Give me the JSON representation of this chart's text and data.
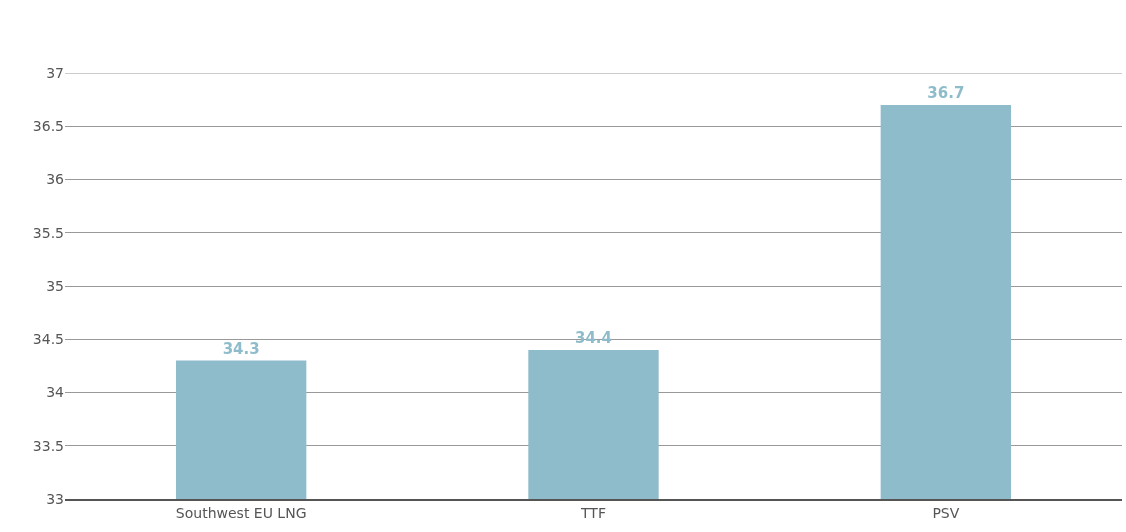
{
  "chart_data": {
    "type": "bar",
    "categories": [
      "Southwest EU LNG",
      "TTF",
      "PSV"
    ],
    "values": [
      34.3,
      34.4,
      36.7
    ],
    "color": "#8fbccb",
    "ylim": [
      33,
      37
    ],
    "yticks": [
      33,
      33.5,
      34,
      34.5,
      35,
      35.5,
      36,
      36.5,
      37
    ],
    "grid": "y",
    "data_labels": true
  }
}
